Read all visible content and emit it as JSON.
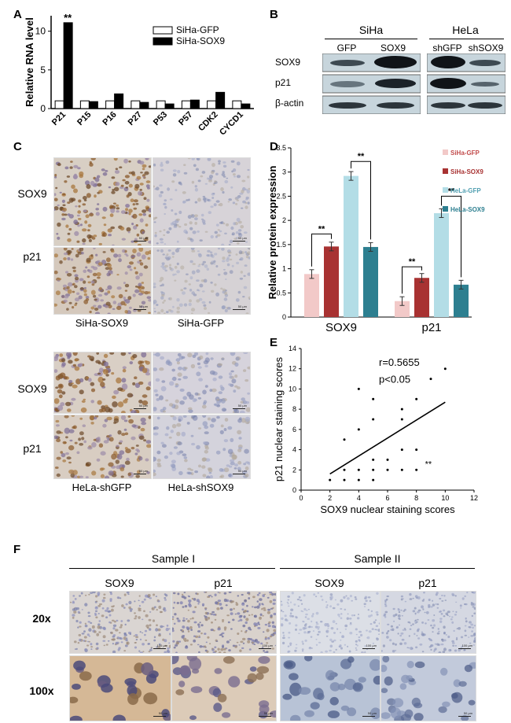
{
  "panels": {
    "A": "A",
    "B": "B",
    "C": "C",
    "D": "D",
    "E": "E",
    "F": "F"
  },
  "colors": {
    "gfp_bar": "#ffffff",
    "sox9_bar": "#000000",
    "siha_gfp": "#f2c9c8",
    "siha_sox9": "#a83232",
    "hela_gfp": "#b3dde6",
    "hela_sox9": "#2d7f90",
    "ihc_brown": "#a07a45",
    "ihc_blue": "#8e98bc"
  },
  "chart_data": [
    {
      "id": "A",
      "type": "bar",
      "ylabel": "Relative RNA level",
      "ylim": [
        0,
        12
      ],
      "yticks": [
        0,
        5,
        10
      ],
      "categories": [
        "P21",
        "P15",
        "P16",
        "P27",
        "P53",
        "P57",
        "CDK2",
        "CYCD1"
      ],
      "series": [
        {
          "name": "SiHa-GFP",
          "values": [
            1,
            1,
            1,
            1,
            1,
            1,
            1,
            1
          ]
        },
        {
          "name": "SiHa-SOX9",
          "values": [
            11.1,
            0.9,
            1.9,
            0.8,
            0.6,
            1.1,
            2.1,
            0.6
          ]
        }
      ],
      "annotations": [
        {
          "category": "P21",
          "text": "**"
        }
      ]
    },
    {
      "id": "D",
      "type": "bar",
      "ylabel": "Relative protein expression",
      "ylim": [
        0,
        3.5
      ],
      "yticks": [
        "0",
        "0.5",
        "1",
        "1.5",
        "2",
        "2.5",
        "3",
        "3.5"
      ],
      "categories": [
        "SOX9",
        "p21"
      ],
      "series": [
        {
          "name": "SiHa-GFP",
          "values": [
            0.89,
            0.33
          ],
          "errors": [
            0.09,
            0.09
          ]
        },
        {
          "name": "SiHa-SOX9",
          "values": [
            1.46,
            0.81
          ],
          "errors": [
            0.09,
            0.09
          ]
        },
        {
          "name": "HeLa-GFP",
          "values": [
            2.92,
            2.15
          ],
          "errors": [
            0.09,
            0.09
          ]
        },
        {
          "name": "HeLa-SOX9",
          "values": [
            1.45,
            0.67
          ],
          "errors": [
            0.09,
            0.09
          ]
        }
      ],
      "brackets": [
        {
          "category": "SOX9",
          "from": 0,
          "to": 1,
          "y": 1.72,
          "text": "**"
        },
        {
          "category": "SOX9",
          "from": 2,
          "to": 3,
          "y": 3.22,
          "text": "**"
        },
        {
          "category": "p21",
          "from": 0,
          "to": 1,
          "y": 1.04,
          "text": "**"
        },
        {
          "category": "p21",
          "from": 2,
          "to": 3,
          "y": 2.5,
          "text": "**"
        }
      ],
      "legend_placement": "top-right"
    },
    {
      "id": "E",
      "type": "scatter",
      "xlabel": "SOX9 nuclear staining scores",
      "ylabel": "p21 nuclear staining scores",
      "xlim": [
        0,
        12
      ],
      "ylim": [
        0,
        14
      ],
      "xticks": [
        0,
        2,
        4,
        6,
        8,
        10,
        12
      ],
      "yticks": [
        0,
        2,
        4,
        6,
        8,
        10,
        12,
        14
      ],
      "points": [
        [
          2,
          1
        ],
        [
          3,
          1
        ],
        [
          3,
          2
        ],
        [
          3,
          5
        ],
        [
          4,
          1
        ],
        [
          4,
          2
        ],
        [
          4,
          6
        ],
        [
          4,
          10
        ],
        [
          5,
          1
        ],
        [
          5,
          2
        ],
        [
          5,
          3
        ],
        [
          5,
          7
        ],
        [
          5,
          9
        ],
        [
          6,
          2
        ],
        [
          6,
          3
        ],
        [
          7,
          2
        ],
        [
          7,
          4
        ],
        [
          7,
          7
        ],
        [
          7,
          8
        ],
        [
          8,
          2
        ],
        [
          8,
          4
        ],
        [
          8,
          9
        ],
        [
          9,
          11
        ],
        [
          10,
          12
        ]
      ],
      "fit": [
        [
          2,
          1.6
        ],
        [
          10,
          8.7
        ]
      ],
      "annotations": [
        "r=0.5655",
        "p<0.05"
      ],
      "marker_text": "**",
      "marker_at": [
        8.6,
        2.3
      ]
    }
  ],
  "blot": {
    "groups": [
      "SiHa",
      "HeLa"
    ],
    "lanes": [
      "GFP",
      "SOX9",
      "shGFP",
      "shSOX9"
    ],
    "rows": [
      "SOX9",
      "p21",
      "β-actin"
    ]
  },
  "panel_c": {
    "rows": [
      "SOX9",
      "p21",
      "SOX9",
      "p21"
    ],
    "captions": [
      "SiHa-SOX9",
      "SiHa-GFP",
      "HeLa-shGFP",
      "HeLa-shSOX9"
    ],
    "scalebar": "50 μm"
  },
  "panel_f": {
    "samples": [
      "Sample I",
      "Sample II"
    ],
    "stains": [
      "SOX9",
      "p21",
      "SOX9",
      "p21"
    ],
    "mags": [
      "20x",
      "100x"
    ],
    "scalebar_20x": "100 μm",
    "scalebar_100x": "50 μm"
  }
}
